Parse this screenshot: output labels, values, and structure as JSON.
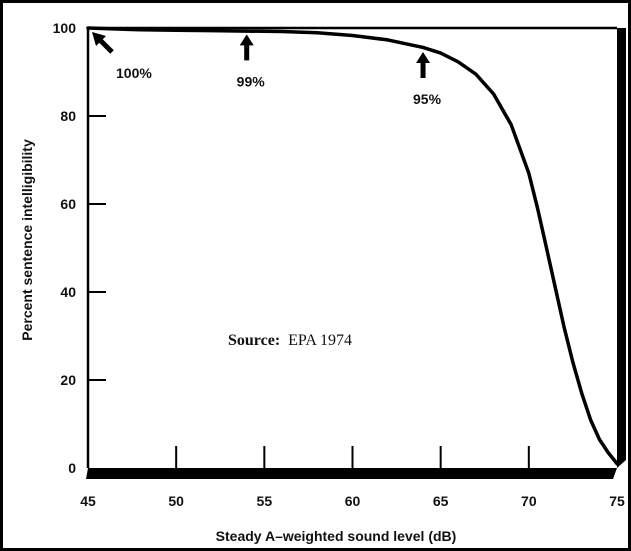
{
  "chart_data": {
    "type": "line",
    "title": "",
    "xlabel": "Steady A–weighted sound level (dB)",
    "ylabel": "Percent sentence intelligibility",
    "xlim": [
      45,
      75
    ],
    "ylim": [
      0,
      100
    ],
    "x_ticks": [
      45,
      50,
      55,
      60,
      65,
      70,
      75
    ],
    "x_tick_labels": [
      "45",
      "50",
      "55",
      "60",
      "65",
      "70",
      "75"
    ],
    "y_ticks": [
      0,
      20,
      40,
      60,
      80,
      100
    ],
    "y_tick_labels": [
      "0",
      "20",
      "40",
      "60",
      "80",
      "100"
    ],
    "grid": false,
    "legend": "none",
    "series": [
      {
        "x": [
          45,
          48,
          50,
          52,
          54,
          56,
          58,
          60,
          62,
          64,
          65,
          66,
          67,
          68,
          69,
          70,
          70.5,
          71,
          71.5,
          72,
          72.5,
          73,
          73.5,
          74,
          74.5,
          75
        ],
        "y": [
          100,
          99.6,
          99.5,
          99.4,
          99.3,
          99.2,
          98.9,
          98.3,
          97.3,
          95.6,
          94.3,
          92.3,
          89.5,
          85,
          78,
          67,
          59,
          50,
          41,
          32,
          24,
          17,
          11,
          6.5,
          3.5,
          1
        ]
      }
    ],
    "annotations": [
      {
        "text": "100%",
        "x": 45,
        "y": 100,
        "direction": "down-right"
      },
      {
        "text": "99%",
        "x": 54,
        "y": 99,
        "direction": "down"
      },
      {
        "text": "95%",
        "x": 64,
        "y": 95,
        "direction": "down"
      }
    ],
    "source": {
      "label": "Source:",
      "text": "EPA 1974"
    }
  }
}
